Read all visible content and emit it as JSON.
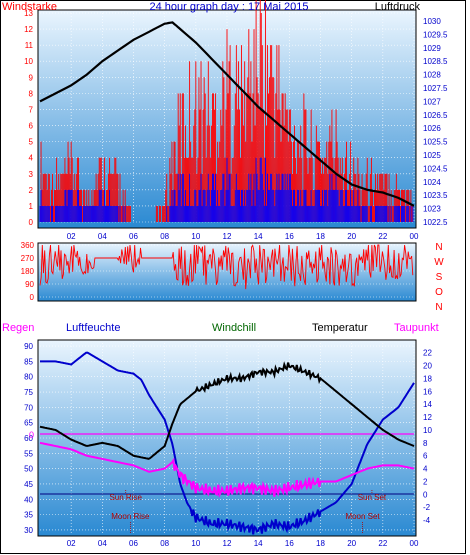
{
  "chart_data": [
    {
      "type": "line",
      "title": "24 hour graph day : 17 Mai 2015",
      "left_axis_label": "Windstarke",
      "right_axis_label": "Luftdruck",
      "left_ticks": [
        "13",
        "12",
        "11",
        "10",
        "9",
        "8",
        "7",
        "6",
        "5",
        "4",
        "3",
        "2",
        "1",
        "0"
      ],
      "right_ticks": [
        "1030",
        "1029.5",
        "1029",
        "1028.5",
        "1028",
        "1027.5",
        "1027",
        "1026.5",
        "1026",
        "1025.5",
        "1025",
        "1024.5",
        "1024",
        "1023.5",
        "1023",
        "1022.5"
      ],
      "x_ticks": [
        "02",
        "04",
        "06",
        "08",
        "10",
        "12",
        "14",
        "16",
        "18",
        "20",
        "22",
        "00"
      ],
      "ylim_left": [
        0,
        13
      ],
      "ylim_right": [
        1022.5,
        1030.3
      ],
      "grid": true,
      "series": [
        {
          "name": "Luftdruck",
          "axis": "right",
          "color": "#000000",
          "x": [
            0,
            1,
            2,
            3,
            4,
            5,
            6,
            7,
            8,
            8.5,
            9,
            10,
            11,
            12,
            13,
            14,
            15,
            16,
            17,
            18,
            19,
            20,
            21,
            22,
            23,
            24
          ],
          "values": [
            1027.0,
            1027.3,
            1027.6,
            1028.0,
            1028.5,
            1028.9,
            1029.3,
            1029.6,
            1029.9,
            1029.95,
            1029.7,
            1029.2,
            1028.6,
            1028.0,
            1027.4,
            1026.8,
            1026.3,
            1025.8,
            1025.3,
            1024.8,
            1024.3,
            1023.9,
            1023.7,
            1023.6,
            1023.4,
            1023.1
          ]
        },
        {
          "name": "Windgeschwindigkeit",
          "axis": "left",
          "color": "#0000ff",
          "x": [
            0,
            1,
            2,
            3,
            4,
            5,
            6,
            7,
            8,
            8.5,
            9,
            10,
            11,
            12,
            13,
            14,
            15,
            16,
            17,
            18,
            19,
            20,
            21,
            22,
            23,
            24
          ],
          "values": [
            2,
            1,
            2,
            1,
            2,
            1,
            0,
            0,
            0,
            2,
            3,
            2,
            3,
            3,
            2,
            4,
            3,
            3,
            2,
            2,
            3,
            2,
            1,
            1,
            1,
            1
          ]
        },
        {
          "name": "Windboen",
          "axis": "left",
          "color": "#ff0000",
          "x": [
            0,
            1,
            2,
            3,
            4,
            5,
            6,
            7,
            8,
            8.5,
            9,
            10,
            11,
            12,
            13,
            14,
            15,
            16,
            17,
            18,
            19,
            20,
            21,
            22,
            23,
            24
          ],
          "values": [
            4,
            3,
            4,
            2,
            4,
            3,
            0,
            0,
            1,
            5,
            7,
            9,
            8,
            10,
            9,
            13,
            11,
            7,
            6,
            5,
            6,
            4,
            3,
            3,
            3,
            2
          ]
        }
      ]
    },
    {
      "type": "scatter",
      "right_axis_label": "N W S O N",
      "direction_letters": [
        "N",
        "W",
        "S",
        "O",
        "N"
      ],
      "left_ticks": [
        "360",
        "270",
        "180",
        "90",
        "0"
      ],
      "ylim": [
        0,
        360
      ],
      "series": [
        {
          "name": "Windrichtung",
          "color": "#ff0000",
          "x": [
            0,
            1,
            2,
            3,
            4,
            5,
            6,
            7,
            8,
            9,
            10,
            11,
            12,
            13,
            14,
            15,
            16,
            17,
            18,
            19,
            20,
            21,
            22,
            23,
            24
          ],
          "values": [
            230,
            250,
            220,
            260,
            240,
            270,
            270,
            270,
            270,
            200,
            240,
            210,
            230,
            190,
            220,
            240,
            230,
            210,
            230,
            200,
            220,
            240,
            250,
            260,
            255
          ]
        }
      ]
    },
    {
      "type": "line",
      "legend": [
        "Regen",
        "Luftfeuchte",
        "Windchill",
        "Temperatur",
        "Taupunkt"
      ],
      "left_ticks": [
        "90",
        "85",
        "80",
        "75",
        "70",
        "65",
        "60",
        "55",
        "50",
        "45",
        "40",
        "35",
        "30"
      ],
      "right_ticks": [
        "22",
        "20",
        "18",
        "16",
        "14",
        "12",
        "10",
        "8",
        "6",
        "4",
        "2",
        "0",
        "-2",
        "-4"
      ],
      "x_ticks": [
        "02",
        "04",
        "06",
        "08",
        "10",
        "12",
        "14",
        "16",
        "18",
        "20",
        "22",
        "00"
      ],
      "zero_marker": "0",
      "ylim_left": [
        29,
        91
      ],
      "ylim_right": [
        -6,
        23.5
      ],
      "annotations": [
        {
          "text": "Sun Rise",
          "x": 5.5
        },
        {
          "text": "Sun Set",
          "x": 21.3
        },
        {
          "text": "Moon Rise",
          "x": 5.8
        },
        {
          "text": "Moon Set",
          "x": 20.7
        }
      ],
      "series": [
        {
          "name": "Luftfeuchte",
          "axis": "left",
          "color": "#0000cc",
          "x": [
            0,
            1,
            2,
            3,
            4,
            5,
            6,
            6.5,
            7,
            8,
            8.5,
            9,
            9.5,
            10,
            11,
            12,
            13,
            14,
            15,
            16,
            17,
            18,
            19,
            20,
            21,
            22,
            23,
            24
          ],
          "values": [
            85,
            85,
            84,
            88,
            85,
            82,
            81,
            79,
            74,
            66,
            58,
            45,
            38,
            34,
            32,
            32,
            31,
            30,
            32,
            31,
            33,
            36,
            39,
            45,
            58,
            66,
            70,
            78
          ]
        },
        {
          "name": "Temperatur",
          "axis": "right",
          "color": "#000000",
          "x": [
            0,
            1,
            2,
            3,
            4,
            5,
            6,
            7,
            8,
            8.5,
            9,
            10,
            11,
            12,
            13,
            14,
            15,
            16,
            17,
            18,
            19,
            20,
            21,
            22,
            23,
            24
          ],
          "values": [
            10.5,
            10,
            8.5,
            7.5,
            8,
            7.5,
            6,
            5.5,
            7.5,
            11,
            14,
            16,
            17,
            18,
            18,
            19,
            19,
            20,
            19,
            18,
            16,
            14,
            12,
            10,
            8.5,
            7.5
          ]
        },
        {
          "name": "Taupunkt",
          "axis": "right",
          "color": "#ff00ff",
          "x": [
            0,
            1,
            2,
            3,
            4,
            5,
            6,
            7,
            8,
            8.5,
            9,
            10,
            11,
            12,
            13,
            14,
            15,
            16,
            17,
            18,
            19,
            20,
            21,
            22,
            23,
            24
          ],
          "values": [
            8,
            7.5,
            7,
            6,
            5.5,
            5,
            4.5,
            3.5,
            4,
            5,
            3,
            1,
            0.5,
            0.5,
            1,
            1,
            0.5,
            1,
            1.5,
            2,
            2,
            3,
            4,
            4.5,
            4.5,
            4
          ]
        }
      ]
    }
  ],
  "colors": {
    "panel_top": "#e9f4fd",
    "panel_bottom": "#2d8cd4",
    "tick_blue": "#0000cc",
    "label_red": "#ff0000",
    "label_green": "#006600",
    "label_magenta": "#ff00ff"
  }
}
